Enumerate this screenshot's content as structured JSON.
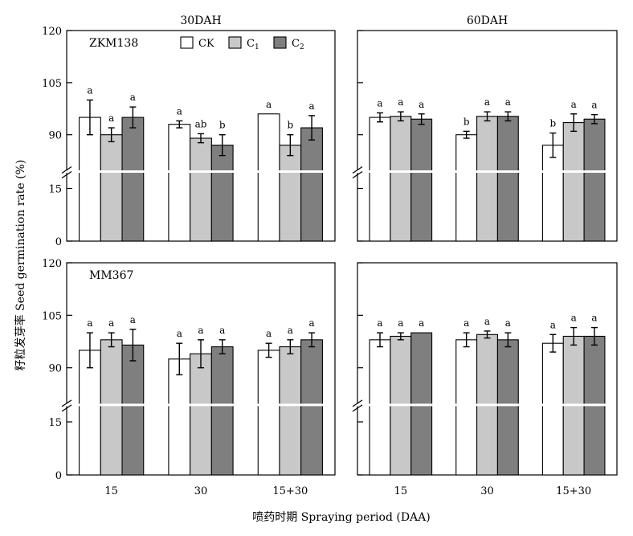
{
  "chart_data": {
    "type": "bar",
    "ylabel": "籽粒发芽率 Seed germination rate (%)",
    "xlabel": "喷药时期 Spraying period (DAA)",
    "categories": [
      "15",
      "30",
      "15+30"
    ],
    "y_ticks_upper": [
      "90",
      "105",
      "120"
    ],
    "y_ticks_lower": [
      "0",
      "15"
    ],
    "axis_break": true,
    "legend": {
      "placement": "top-left",
      "entries": [
        {
          "key": "CK",
          "label": "CK",
          "sub": "",
          "color": "#ffffff"
        },
        {
          "key": "C1",
          "label": "C",
          "sub": "1",
          "color": "#c8c8c8"
        },
        {
          "key": "C2",
          "label": "C",
          "sub": "2",
          "color": "#7f7f7f"
        }
      ]
    },
    "panels": [
      {
        "id": "top-left",
        "title": "30DAH",
        "cultivar": "ZKM138",
        "groups": [
          {
            "category": "15",
            "bars": [
              {
                "series": "CK",
                "value": 95,
                "error": 5,
                "letter": "a"
              },
              {
                "series": "C1",
                "value": 90,
                "error": 2,
                "letter": "a"
              },
              {
                "series": "C2",
                "value": 95,
                "error": 3,
                "letter": "a"
              }
            ]
          },
          {
            "category": "30",
            "bars": [
              {
                "series": "CK",
                "value": 93,
                "error": 1,
                "letter": "a"
              },
              {
                "series": "C1",
                "value": 89,
                "error": 1.3,
                "letter": "ab"
              },
              {
                "series": "C2",
                "value": 87,
                "error": 3,
                "letter": "b"
              }
            ]
          },
          {
            "category": "15+30",
            "bars": [
              {
                "series": "CK",
                "value": 96,
                "error": 0,
                "letter": "a"
              },
              {
                "series": "C1",
                "value": 87,
                "error": 3,
                "letter": "b"
              },
              {
                "series": "C2",
                "value": 92,
                "error": 3.5,
                "letter": "a"
              }
            ]
          }
        ]
      },
      {
        "id": "top-right",
        "title": "60DAH",
        "cultivar": "",
        "groups": [
          {
            "category": "15",
            "bars": [
              {
                "series": "CK",
                "value": 95,
                "error": 1.3,
                "letter": "a"
              },
              {
                "series": "C1",
                "value": 95.3,
                "error": 1.3,
                "letter": "a"
              },
              {
                "series": "C2",
                "value": 94.5,
                "error": 1.5,
                "letter": "a"
              }
            ]
          },
          {
            "category": "30",
            "bars": [
              {
                "series": "CK",
                "value": 90,
                "error": 1,
                "letter": "b"
              },
              {
                "series": "C1",
                "value": 95.3,
                "error": 1.3,
                "letter": "a"
              },
              {
                "series": "C2",
                "value": 95.3,
                "error": 1.3,
                "letter": "a"
              }
            ]
          },
          {
            "category": "15+30",
            "bars": [
              {
                "series": "CK",
                "value": 87,
                "error": 3.5,
                "letter": "b"
              },
              {
                "series": "C1",
                "value": 93.5,
                "error": 2.5,
                "letter": "a"
              },
              {
                "series": "C2",
                "value": 94.5,
                "error": 1.3,
                "letter": "a"
              }
            ]
          }
        ]
      },
      {
        "id": "bottom-left",
        "title": "",
        "cultivar": "MM367",
        "groups": [
          {
            "category": "15",
            "bars": [
              {
                "series": "CK",
                "value": 95,
                "error": 5,
                "letter": "a"
              },
              {
                "series": "C1",
                "value": 98,
                "error": 2,
                "letter": "a"
              },
              {
                "series": "C2",
                "value": 96.5,
                "error": 4.5,
                "letter": "a"
              }
            ]
          },
          {
            "category": "30",
            "bars": [
              {
                "series": "CK",
                "value": 92.5,
                "error": 4.5,
                "letter": "a"
              },
              {
                "series": "C1",
                "value": 94,
                "error": 4,
                "letter": "a"
              },
              {
                "series": "C2",
                "value": 96,
                "error": 2,
                "letter": "a"
              }
            ]
          },
          {
            "category": "15+30",
            "bars": [
              {
                "series": "CK",
                "value": 95,
                "error": 2,
                "letter": "a"
              },
              {
                "series": "C1",
                "value": 96,
                "error": 2,
                "letter": "a"
              },
              {
                "series": "C2",
                "value": 98,
                "error": 2,
                "letter": "a"
              }
            ]
          }
        ]
      },
      {
        "id": "bottom-right",
        "title": "",
        "cultivar": "",
        "groups": [
          {
            "category": "15",
            "bars": [
              {
                "series": "CK",
                "value": 98,
                "error": 2,
                "letter": "a"
              },
              {
                "series": "C1",
                "value": 99,
                "error": 1,
                "letter": "a"
              },
              {
                "series": "C2",
                "value": 100,
                "error": 0,
                "letter": "a"
              }
            ]
          },
          {
            "category": "30",
            "bars": [
              {
                "series": "CK",
                "value": 98,
                "error": 2,
                "letter": "a"
              },
              {
                "series": "C1",
                "value": 99.5,
                "error": 1,
                "letter": "a"
              },
              {
                "series": "C2",
                "value": 98,
                "error": 2,
                "letter": "a"
              }
            ]
          },
          {
            "category": "15+30",
            "bars": [
              {
                "series": "CK",
                "value": 97,
                "error": 2.5,
                "letter": "a"
              },
              {
                "series": "C1",
                "value": 99,
                "error": 2.5,
                "letter": "a"
              },
              {
                "series": "C2",
                "value": 99,
                "error": 2.5,
                "letter": "a"
              }
            ]
          }
        ]
      }
    ]
  }
}
